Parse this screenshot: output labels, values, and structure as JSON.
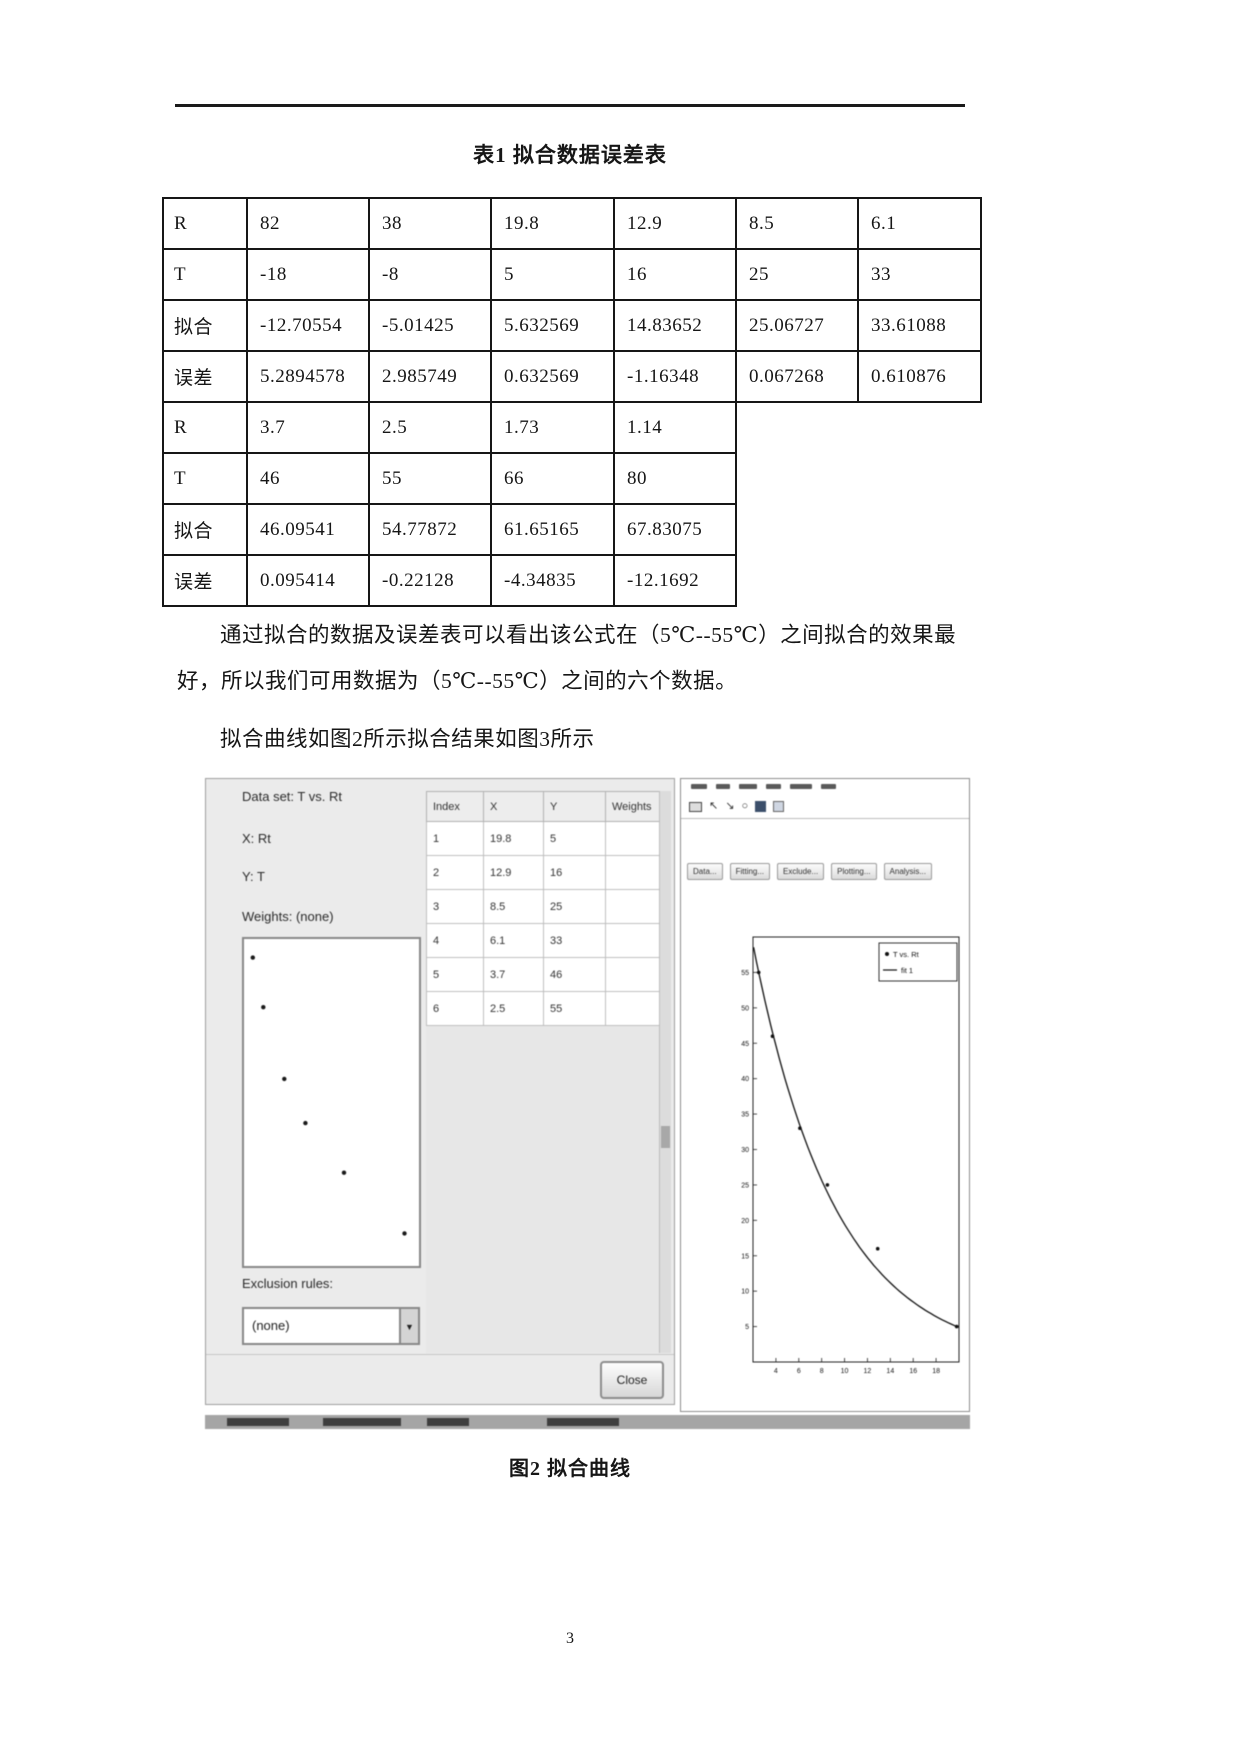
{
  "doc": {
    "table_title": "表1  拟合数据误差表",
    "paragraph": "通过拟合的数据及误差表可以看出该公式在（5℃--55℃）之间拟合的效果最好，所以我们可用数据为（5℃--55℃）之间的六个数据。",
    "paragraph2": "拟合曲线如图2所示拟合结果如图3所示",
    "figure_caption": "图2  拟合曲线",
    "page_number": "3"
  },
  "table1": {
    "rows": [
      {
        "label": "R",
        "values": [
          "82",
          "38",
          "19.8",
          "12.9",
          "8.5",
          "6.1"
        ]
      },
      {
        "label": "T",
        "values": [
          "-18",
          "-8",
          "5",
          "16",
          "25",
          "33"
        ]
      },
      {
        "label": "拟合",
        "values": [
          "-12.70554",
          "-5.01425",
          "5.632569",
          "14.83652",
          "25.06727",
          "33.61088"
        ]
      },
      {
        "label": "误差",
        "values": [
          "5.2894578",
          "2.985749",
          "0.632569",
          "-1.16348",
          "0.067268",
          "0.610876"
        ]
      },
      {
        "label": "R",
        "values": [
          "3.7",
          "2.5",
          "1.73",
          "1.14"
        ]
      },
      {
        "label": "T",
        "values": [
          "46",
          "55",
          "66",
          "80"
        ]
      },
      {
        "label": "拟合",
        "values": [
          "46.09541",
          "54.77872",
          "61.65165",
          "67.83075"
        ]
      },
      {
        "label": "误差",
        "values": [
          "0.095414",
          "-0.22128",
          "-4.34835",
          "-12.1692"
        ]
      }
    ]
  },
  "cftool": {
    "data_set_label": "Data set: T vs. Rt",
    "x_label": "X: Rt",
    "y_label": "Y: T",
    "weights_label": "Weights: (none)",
    "exclusion_label": "Exclusion rules:",
    "exclusion_value": "(none)",
    "close_label": "Close",
    "table_headers": [
      "Index",
      "X",
      "Y",
      "Weights"
    ],
    "table_rows": [
      [
        "1",
        "19.8",
        "5",
        ""
      ],
      [
        "2",
        "12.9",
        "16",
        ""
      ],
      [
        "3",
        "8.5",
        "25",
        ""
      ],
      [
        "4",
        "6.1",
        "33",
        ""
      ],
      [
        "5",
        "3.7",
        "46",
        ""
      ],
      [
        "6",
        "2.5",
        "55",
        ""
      ]
    ],
    "toolbar_buttons": [
      "Data...",
      "Fitting...",
      "Exclude...",
      "Plotting...",
      "Analysis..."
    ]
  },
  "chart_data": [
    {
      "id": "preview-scatter",
      "type": "scatter",
      "x": [
        19.8,
        12.9,
        8.5,
        6.1,
        3.7,
        2.5
      ],
      "y": [
        5,
        16,
        25,
        33,
        46,
        55
      ],
      "xlim": [
        1.5,
        21
      ],
      "ylim": [
        0,
        58
      ],
      "title": "",
      "xlabel": "",
      "ylabel": "",
      "grid": false,
      "axes_shown": false
    },
    {
      "id": "main-fit-plot",
      "type": "scatter+line",
      "series": [
        {
          "name": "T vs. Rt",
          "kind": "scatter",
          "x": [
            19.8,
            12.9,
            8.5,
            6.1,
            3.7,
            2.5
          ],
          "y": [
            5,
            16,
            25,
            33,
            46,
            55
          ]
        },
        {
          "name": "fit 1",
          "kind": "fit-curve",
          "model": "exponential a*exp(b*x) through data"
        }
      ],
      "xlim": [
        2,
        20
      ],
      "ylim": [
        0,
        60
      ],
      "xticks": [
        4,
        6,
        8,
        10,
        12,
        14,
        16,
        18
      ],
      "yticks": [
        5,
        10,
        15,
        20,
        25,
        30,
        35,
        40,
        45,
        50,
        55
      ],
      "legend": [
        "T vs. Rt",
        "fit 1"
      ],
      "legend_position": "top-right",
      "grid": false
    }
  ]
}
